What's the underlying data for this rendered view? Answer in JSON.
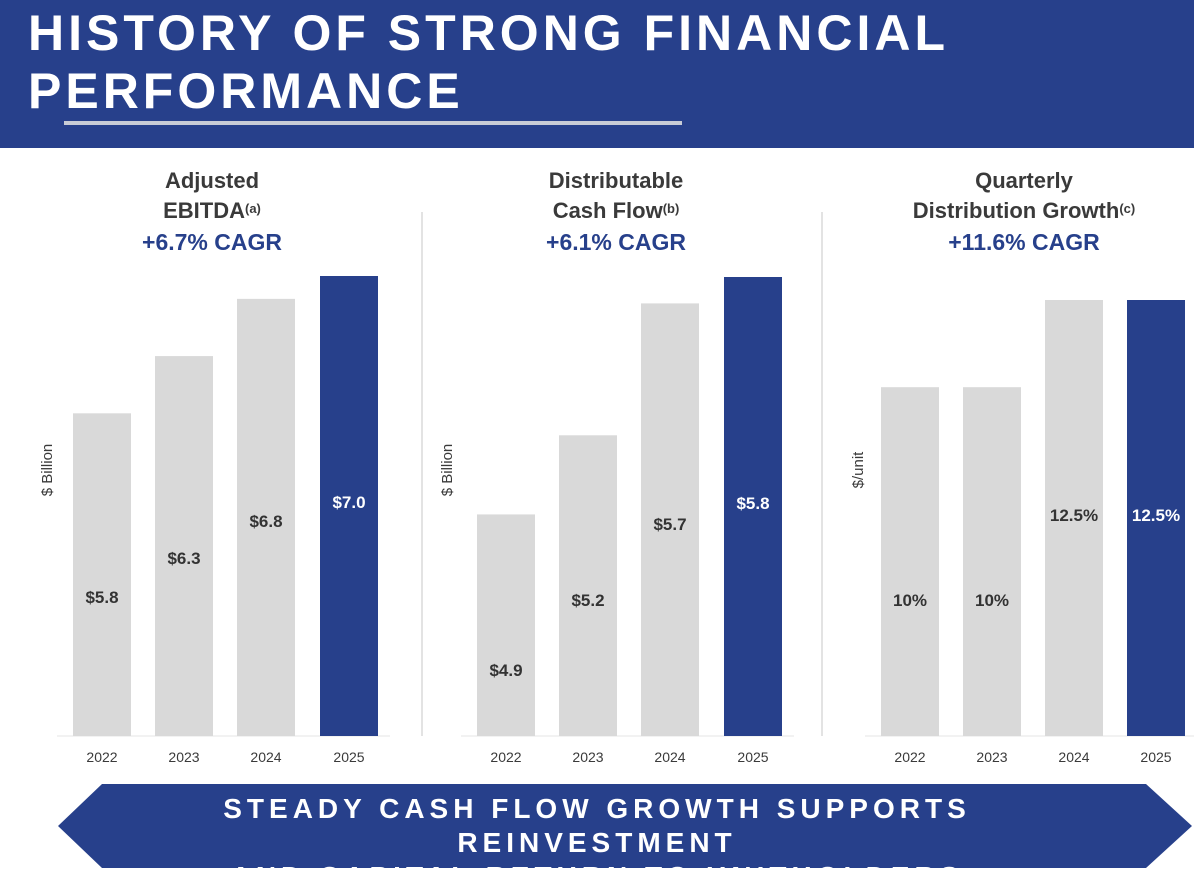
{
  "header": {
    "title": "HISTORY OF STRONG FINANCIAL PERFORMANCE"
  },
  "colors": {
    "brand": "#27408b",
    "bar_gray": "#d9d9d9",
    "highlight": "#27408b"
  },
  "chart_data": [
    {
      "type": "bar",
      "title_line1": "Adjusted",
      "title_line2": "EBITDA",
      "title_note": "(a)",
      "subtitle": "+6.7% CAGR",
      "ylabel": "$ Billion",
      "categories": [
        "2022",
        "2023",
        "2024",
        "2025"
      ],
      "values": [
        5.8,
        6.3,
        6.8,
        7.0
      ],
      "labels": [
        "$5.8",
        "$6.3",
        "$6.8",
        "$7.0"
      ],
      "highlight_index": 3,
      "ylim": [
        2.98,
        7.0
      ]
    },
    {
      "type": "bar",
      "title_line1": "Distributable",
      "title_line2": "Cash Flow",
      "title_note": "(b)",
      "subtitle": "+6.1% CAGR",
      "ylabel": "$ Billion",
      "categories": [
        "2022",
        "2023",
        "2024",
        "2025"
      ],
      "values": [
        4.9,
        5.2,
        5.7,
        5.8
      ],
      "labels": [
        "$4.9",
        "$5.2",
        "$5.7",
        "$5.8"
      ],
      "highlight_index": 3,
      "ylim": [
        4.06,
        5.8
      ]
    },
    {
      "type": "bar",
      "title_line1": "Quarterly",
      "title_line2": "Distribution Growth",
      "title_note": "(c)",
      "subtitle": "+11.6% CAGR",
      "ylabel": "$/unit",
      "categories": [
        "2022",
        "2023",
        "2024",
        "2025"
      ],
      "values": [
        10,
        10,
        12.5,
        12.5
      ],
      "labels": [
        "10%",
        "10%",
        "12.5%",
        "12.5%"
      ],
      "highlight_index": 3,
      "ylim": [
        0,
        12.5
      ]
    }
  ],
  "banner": {
    "line1": "STEADY CASH FLOW GROWTH SUPPORTS REINVESTMENT",
    "line2": "AND CAPITAL RETURN TO UNITHOLDERS"
  }
}
